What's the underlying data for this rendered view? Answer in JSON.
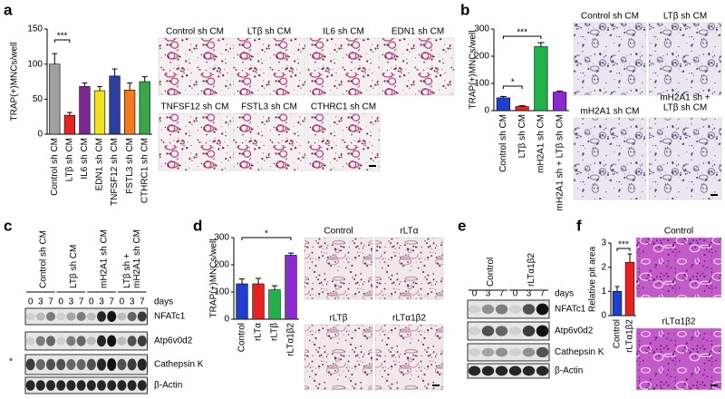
{
  "panels": [
    "a",
    "b",
    "c",
    "d",
    "e",
    "f"
  ],
  "chart_data": [
    {
      "type": "bar",
      "ylabel": "TRAP(+)MNCs/well",
      "categories": [
        "Control sh CM",
        "LTβ sh CM",
        "IL6 sh CM",
        "EDN1 sh CM",
        "TNFSF12 sh CM",
        "FSTL3 sh CM",
        "CTHRC1 sh CM"
      ],
      "values": [
        100,
        27,
        68,
        62,
        83,
        63,
        75
      ],
      "errors": [
        15,
        4,
        5,
        6,
        10,
        10,
        7
      ],
      "colors": [
        "#a0a0a0",
        "#e8231f",
        "#7a2a8c",
        "#f2e21b",
        "#2a3fa0",
        "#f07a1f",
        "#3aa64a"
      ],
      "ylim": [
        0,
        150
      ],
      "yticks": [
        0,
        50,
        100,
        150
      ],
      "annotations": [
        "***"
      ]
    },
    {
      "type": "bar",
      "ylabel": "TRAP(+)MNCs/well",
      "categories": [
        "Control sh CM",
        "LTβ sh CM",
        "mH2A1 sh CM",
        "mH2A1 sh + LTβ sh CM"
      ],
      "values": [
        47,
        15,
        235,
        68
      ],
      "errors": [
        5,
        3,
        15,
        4
      ],
      "colors": [
        "#1f3fd0",
        "#e8231f",
        "#22b04a",
        "#8a2ad0"
      ],
      "ylim": [
        0,
        300
      ],
      "yticks": [
        0,
        100,
        200,
        300
      ],
      "annotations": [
        "*",
        "***"
      ]
    },
    {
      "type": "bar",
      "ylabel": "TRAP(+)MNCs/well",
      "categories": [
        "Control",
        "rLTα",
        "rLTβ",
        "rLTα1β2"
      ],
      "values": [
        130,
        130,
        108,
        235
      ],
      "errors": [
        18,
        20,
        15,
        8
      ],
      "colors": [
        "#1f3fd0",
        "#e8231f",
        "#22b04a",
        "#8a2ad0"
      ],
      "ylim": [
        0,
        300
      ],
      "yticks": [
        0,
        100,
        200,
        300
      ],
      "annotations": [
        "*"
      ]
    },
    {
      "type": "bar",
      "ylabel": "Relative pit area",
      "categories": [
        "Control",
        "rLTα1β2"
      ],
      "values": [
        1.0,
        2.2
      ],
      "errors": [
        0.2,
        0.35
      ],
      "colors": [
        "#1f3fd0",
        "#e8231f"
      ],
      "ylim": [
        0,
        3
      ],
      "yticks": [
        0,
        1,
        2,
        3
      ],
      "annotations": [
        "***"
      ]
    }
  ],
  "micrographs": {
    "a": [
      "Control sh CM",
      "LTβ sh CM",
      "IL6 sh CM",
      "EDN1 sh CM",
      "TNFSF12 sh CM",
      "FSTL3 sh CM",
      "CTHRC1 sh CM"
    ],
    "b": [
      "Control sh CM",
      "LTβ sh CM",
      "mH2A1 sh CM",
      [
        "mH2A1 sh +",
        "LTβ sh CM"
      ]
    ],
    "d": [
      "Control",
      "rLTα",
      "rLTβ",
      "rLTα1β2"
    ],
    "f": [
      "Control",
      "rLTα1β2"
    ]
  },
  "blots": {
    "c": {
      "groups": [
        "Control sh CM",
        "LTβ sh CM",
        "mH2A1 sh CM",
        [
          "LTβ sh +",
          "mH2A1 sh CM"
        ]
      ],
      "days": [
        0,
        3,
        7
      ],
      "days_label": "days",
      "marker": "*",
      "rows": [
        "NFATc1",
        "Atp6v0d2",
        "Cathepsin K",
        "β-Actin"
      ]
    },
    "e": {
      "groups": [
        "Control",
        "rLTα1β2"
      ],
      "days": [
        0,
        3,
        7
      ],
      "days_label": "days",
      "rows": [
        "NFATc1",
        "Atp6v0d2",
        "Cathepsin K",
        "β-Actin"
      ]
    }
  }
}
